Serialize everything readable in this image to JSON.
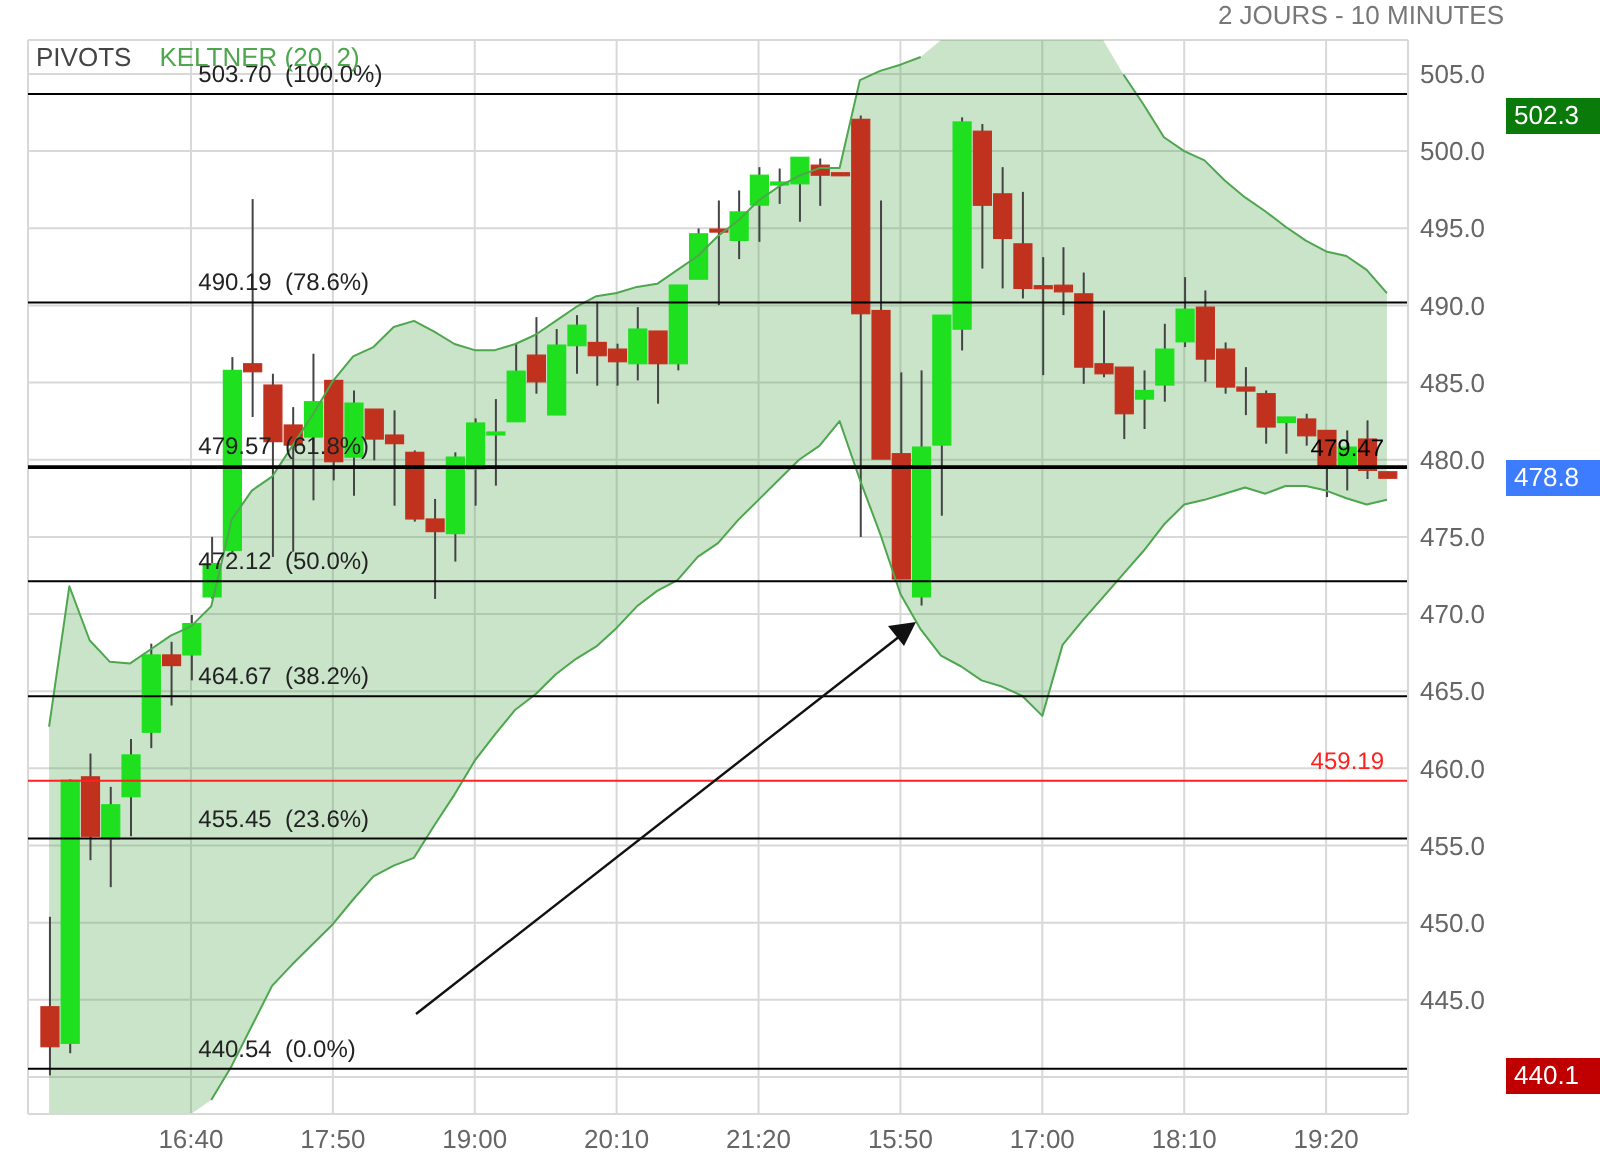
{
  "chart_data": {
    "type": "candlestick",
    "subtitle": "2 JOURS - 10 MINUTES",
    "categories": [
      null,
      null,
      null,
      null,
      null,
      null,
      null,
      "16:40",
      null,
      null,
      null,
      null,
      null,
      null,
      "17:50",
      null,
      null,
      null,
      null,
      null,
      null,
      "19:00",
      null,
      null,
      null,
      null,
      null,
      null,
      "20:10",
      null,
      null,
      null,
      null,
      null,
      null,
      "21:20",
      null,
      null,
      null,
      null,
      null,
      null,
      "15:50",
      null,
      null,
      null,
      null,
      null,
      null,
      "17:00",
      null,
      null,
      null,
      null,
      null,
      null,
      "18:10",
      null,
      null,
      null,
      null,
      null,
      null,
      "19:20",
      null,
      null,
      null
    ],
    "ohlc": [
      [
        444.55,
        450.38,
        440.1,
        441.96
      ],
      [
        442.18,
        459.3,
        441.53,
        459.23
      ],
      [
        459.45,
        460.96,
        454.05,
        455.6
      ],
      [
        455.43,
        458.8,
        452.3,
        457.64
      ],
      [
        458.16,
        461.9,
        455.6,
        460.87
      ],
      [
        462.34,
        468.08,
        461.31,
        467.35
      ],
      [
        467.35,
        468.2,
        464.07,
        466.66
      ],
      [
        467.35,
        469.94,
        465.7,
        469.38
      ],
      [
        471.11,
        475.0,
        471.0,
        473.27
      ],
      [
        474.13,
        486.65,
        474.0,
        485.79
      ],
      [
        486.22,
        496.89,
        482.77,
        485.7
      ],
      [
        484.84,
        485.57,
        473.7,
        481.17
      ],
      [
        482.25,
        483.41,
        474.04,
        480.95
      ],
      [
        481.47,
        486.87,
        477.37,
        483.76
      ],
      [
        485.14,
        485.14,
        478.66,
        479.87
      ],
      [
        480.17,
        484.49,
        477.67,
        483.67
      ],
      [
        483.28,
        483.28,
        479.96,
        481.34
      ],
      [
        481.6,
        483.2,
        477.02,
        481.04
      ],
      [
        480.48,
        480.6,
        475.99,
        476.16
      ],
      [
        476.16,
        477.46,
        470.98,
        475.34
      ],
      [
        475.21,
        480.48,
        473.4,
        480.17
      ],
      [
        479.4,
        482.68,
        477.02,
        482.38
      ],
      [
        481.6,
        483.93,
        478.32,
        481.7
      ],
      [
        482.46,
        487.52,
        482.46,
        485.74
      ],
      [
        486.78,
        489.24,
        484.28,
        485.05
      ],
      [
        482.9,
        488.47,
        482.9,
        487.43
      ],
      [
        487.39,
        489.37,
        485.57,
        488.72
      ],
      [
        487.6,
        490.24,
        484.8,
        486.74
      ],
      [
        487.17,
        487.52,
        484.8,
        486.35
      ],
      [
        486.22,
        489.89,
        485.14,
        488.47
      ],
      [
        488.34,
        488.34,
        483.63,
        486.22
      ],
      [
        486.22,
        491.32,
        485.79,
        491.32
      ],
      [
        491.7,
        494.99,
        491.7,
        494.64
      ],
      [
        494.85,
        496.8,
        490.02,
        494.7
      ],
      [
        494.21,
        497.45,
        493.0,
        496.06
      ],
      [
        496.5,
        498.96,
        494.12,
        498.44
      ],
      [
        497.8,
        498.87,
        496.58,
        497.9
      ],
      [
        497.88,
        499.6,
        495.42,
        499.6
      ],
      [
        499.09,
        499.52,
        496.45,
        498.44
      ],
      [
        498.5,
        498.5,
        498.4,
        498.4
      ],
      [
        502.06,
        502.3,
        475.0,
        489.46
      ],
      [
        489.67,
        496.8,
        480.04,
        480.04
      ],
      [
        480.39,
        485.66,
        472.27,
        472.27
      ],
      [
        471.11,
        485.79,
        470.55,
        480.82
      ],
      [
        480.95,
        489.37,
        476.37,
        489.37
      ],
      [
        488.46,
        502.19,
        487.08,
        501.89
      ],
      [
        501.29,
        501.76,
        492.39,
        496.49
      ],
      [
        497.23,
        498.96,
        491.1,
        494.34
      ],
      [
        493.99,
        497.36,
        490.45,
        491.1
      ],
      [
        491.18,
        493.13,
        485.48,
        491.0
      ],
      [
        491.31,
        493.77,
        489.37,
        490.88
      ],
      [
        490.75,
        492.13,
        484.92,
        486.0
      ],
      [
        486.22,
        489.67,
        485.35,
        485.57
      ],
      [
        486.0,
        486.0,
        481.34,
        482.98
      ],
      [
        483.93,
        485.79,
        481.99,
        484.49
      ],
      [
        484.84,
        488.81,
        483.76,
        487.17
      ],
      [
        487.64,
        491.83,
        487.3,
        489.76
      ],
      [
        489.89,
        490.97,
        485.05,
        486.52
      ],
      [
        487.17,
        487.6,
        484.28,
        484.71
      ],
      [
        484.71,
        486.0,
        482.89,
        484.45
      ],
      [
        484.28,
        484.49,
        481.04,
        482.12
      ],
      [
        482.42,
        482.77,
        480.39,
        482.77
      ],
      [
        482.64,
        482.98,
        480.91,
        481.55
      ],
      [
        481.9,
        481.9,
        477.58,
        479.53
      ],
      [
        479.53,
        481.9,
        478.01,
        480.82
      ],
      [
        481.34,
        482.55,
        478.75,
        479.31
      ],
      [
        479.22,
        479.22,
        478.8,
        478.8
      ]
    ],
    "colors": [
      "#c0321e",
      "#1ee01e",
      "#c0321e",
      "#1ee01e",
      "#1ee01e",
      "#1ee01e",
      "#c0321e",
      "#1ee01e",
      "#1ee01e",
      "#1ee01e",
      "#c0321e",
      "#c0321e",
      "#c0321e",
      "#1ee01e",
      "#c0321e",
      "#1ee01e",
      "#c0321e",
      "#c0321e",
      "#c0321e",
      "#c0321e",
      "#1ee01e",
      "#1ee01e",
      "#1ee01e",
      "#1ee01e",
      "#c0321e",
      "#1ee01e",
      "#1ee01e",
      "#c0321e",
      "#c0321e",
      "#1ee01e",
      "#c0321e",
      "#1ee01e",
      "#1ee01e",
      "#c0321e",
      "#1ee01e",
      "#1ee01e",
      "#1ee01e",
      "#1ee01e",
      "#c0321e",
      "#c0321e",
      "#c0321e",
      "#c0321e",
      "#c0321e",
      "#1ee01e",
      "#1ee01e",
      "#1ee01e",
      "#c0321e",
      "#c0321e",
      "#c0321e",
      "#c0321e",
      "#c0321e",
      "#c0321e",
      "#c0321e",
      "#c0321e",
      "#1ee01e",
      "#1ee01e",
      "#1ee01e",
      "#c0321e",
      "#c0321e",
      "#c0321e",
      "#c0321e",
      "#1ee01e",
      "#c0321e",
      "#c0321e",
      "#1ee01e",
      "#c0321e",
      "#c0321e"
    ],
    "series": [
      {
        "name": "KELTNER (20, 2)",
        "type": "line",
        "color": "#4ea64e",
        "values": [
          462.7,
          471.8,
          468.3,
          466.9,
          466.8,
          467.7,
          468.6,
          469.2,
          470.5,
          476.1,
          478.0,
          478.9,
          480.9,
          482.9,
          485.1,
          486.7,
          487.3,
          488.6,
          489.0,
          488.3,
          487.5,
          487.1,
          487.1,
          487.5,
          488.1,
          489.0,
          489.9,
          490.6,
          490.8,
          491.2,
          491.4,
          492.3,
          493.2,
          494.5,
          495.5,
          496.8,
          497.7,
          498.4,
          498.9,
          498.9,
          504.6,
          505.2,
          505.6,
          506.1,
          null,
          null,
          null,
          null,
          null,
          null,
          null,
          null,
          null,
          504.96,
          503.0,
          500.9,
          500.0,
          499.4,
          498.1,
          497.0,
          496.1,
          495.1,
          494.2,
          493.5,
          493.2,
          492.3,
          490.8
        ]
      },
      {
        "type": "line",
        "color": "#4ea64e",
        "values": [
          null,
          null,
          null,
          null,
          null,
          null,
          null,
          null,
          438.5,
          440.7,
          443.3,
          445.9,
          447.3,
          448.6,
          449.9,
          451.5,
          453.0,
          453.7,
          454.2,
          456.3,
          458.3,
          460.5,
          462.2,
          463.8,
          464.8,
          466.1,
          467.1,
          467.9,
          469.1,
          470.5,
          471.5,
          472.2,
          473.7,
          474.6,
          476.1,
          477.4,
          478.7,
          480.0,
          480.9,
          482.5,
          478.7,
          475.2,
          471.3,
          469.0,
          467.3,
          466.6,
          465.7,
          465.3,
          464.7,
          463.4,
          468.0,
          469.6,
          471.1,
          472.6,
          474.1,
          475.8,
          477.1,
          477.4,
          477.8,
          478.2,
          477.8,
          478.3,
          478.3,
          478.0,
          477.5,
          477.1,
          477.4
        ]
      }
    ],
    "ylim": [
      437.6,
      507.2
    ],
    "yticks": [
      {
        "value": 440,
        "label": null
      },
      {
        "value": 445,
        "label": "445.0"
      },
      {
        "value": 450,
        "label": "450.0"
      },
      {
        "value": 455,
        "label": "455.0"
      },
      {
        "value": 460,
        "label": "460.0"
      },
      {
        "value": 465,
        "label": "465.0"
      },
      {
        "value": 470,
        "label": "470.0"
      },
      {
        "value": 475,
        "label": "475.0"
      },
      {
        "value": 480,
        "label": "480.0"
      },
      {
        "value": 485,
        "label": "485.0"
      },
      {
        "value": 490,
        "label": "490.0"
      },
      {
        "value": 495,
        "label": "495.0"
      },
      {
        "value": 500,
        "label": "500.0"
      },
      {
        "value": 505,
        "label": "505.0"
      }
    ],
    "grid": true,
    "legend": "top left",
    "ref_lines": [
      {
        "axis": "y",
        "value": 503.7,
        "label": "503.70  (100.0%)"
      },
      {
        "axis": "y",
        "value": 490.19,
        "label": "490.19  (78.6%)"
      },
      {
        "axis": "y",
        "value": 479.57,
        "label": "479.57  (61.8%)"
      },
      {
        "axis": "y",
        "value": 472.12,
        "label": "472.12  (50.0%)"
      },
      {
        "axis": "y",
        "value": 464.67,
        "label": "464.67  (38.2%)"
      },
      {
        "axis": "y",
        "value": 455.45,
        "label": "455.45  (23.6%)"
      },
      {
        "axis": "y",
        "value": 440.54,
        "label": "440.54  (0.0%)"
      },
      {
        "axis": "y",
        "value": 459.19,
        "label": "459.19",
        "color": "#ff2020"
      },
      {
        "axis": "y",
        "value": 479.47,
        "label": "479.47",
        "color": "#000000"
      }
    ],
    "annotations": [
      "PIVOTS",
      "502.3",
      "478.8",
      "440.1"
    ]
  }
}
